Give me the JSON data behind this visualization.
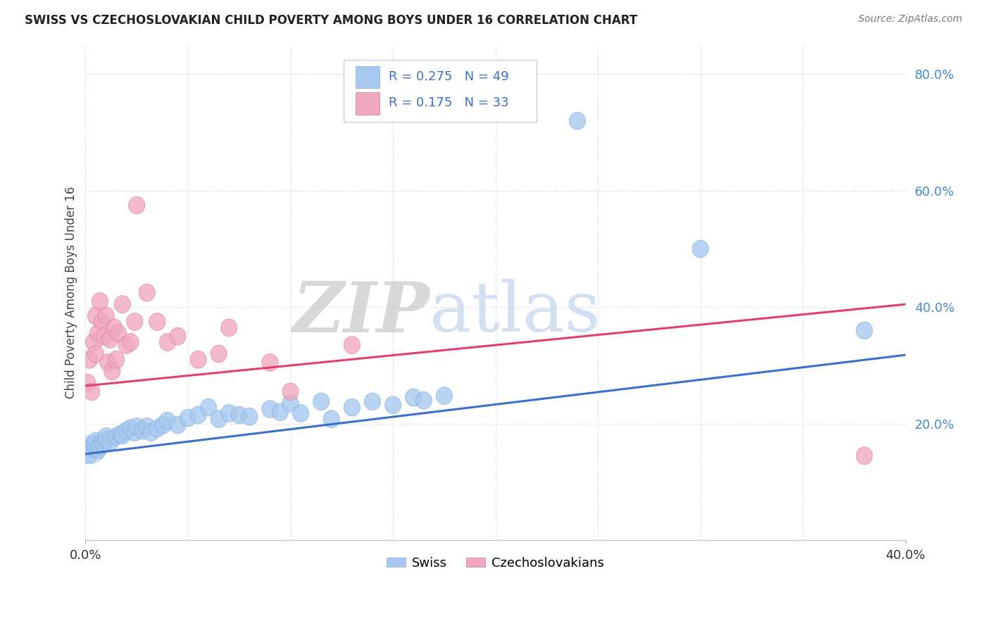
{
  "title": "SWISS VS CZECHOSLOVAKIAN CHILD POVERTY AMONG BOYS UNDER 16 CORRELATION CHART",
  "source": "Source: ZipAtlas.com",
  "ylabel": "Child Poverty Among Boys Under 16",
  "swiss_color": "#a8c8f0",
  "swiss_edge_color": "#7aaad8",
  "czech_color": "#f0a8c0",
  "czech_edge_color": "#d87898",
  "swiss_line_color": "#3a6fcc",
  "czech_line_color": "#e0406a",
  "background_color": "#ffffff",
  "grid_color": "#cccccc",
  "swiss_R": 0.275,
  "swiss_N": 49,
  "czech_R": 0.175,
  "czech_N": 33,
  "swiss_points": [
    [
      0.001,
      0.155
    ],
    [
      0.002,
      0.148
    ],
    [
      0.003,
      0.16
    ],
    [
      0.004,
      0.165
    ],
    [
      0.005,
      0.158
    ],
    [
      0.005,
      0.17
    ],
    [
      0.006,
      0.155
    ],
    [
      0.007,
      0.162
    ],
    [
      0.008,
      0.168
    ],
    [
      0.009,
      0.165
    ],
    [
      0.01,
      0.172
    ],
    [
      0.01,
      0.178
    ],
    [
      0.012,
      0.168
    ],
    [
      0.015,
      0.178
    ],
    [
      0.017,
      0.182
    ],
    [
      0.018,
      0.18
    ],
    [
      0.02,
      0.188
    ],
    [
      0.022,
      0.192
    ],
    [
      0.024,
      0.185
    ],
    [
      0.025,
      0.195
    ],
    [
      0.028,
      0.188
    ],
    [
      0.03,
      0.195
    ],
    [
      0.032,
      0.185
    ],
    [
      0.035,
      0.192
    ],
    [
      0.038,
      0.198
    ],
    [
      0.04,
      0.205
    ],
    [
      0.045,
      0.198
    ],
    [
      0.05,
      0.21
    ],
    [
      0.055,
      0.215
    ],
    [
      0.06,
      0.228
    ],
    [
      0.065,
      0.208
    ],
    [
      0.07,
      0.218
    ],
    [
      0.075,
      0.215
    ],
    [
      0.08,
      0.212
    ],
    [
      0.09,
      0.225
    ],
    [
      0.095,
      0.22
    ],
    [
      0.1,
      0.235
    ],
    [
      0.105,
      0.218
    ],
    [
      0.115,
      0.238
    ],
    [
      0.12,
      0.208
    ],
    [
      0.13,
      0.228
    ],
    [
      0.14,
      0.238
    ],
    [
      0.15,
      0.232
    ],
    [
      0.16,
      0.245
    ],
    [
      0.165,
      0.24
    ],
    [
      0.175,
      0.248
    ],
    [
      0.24,
      0.72
    ],
    [
      0.3,
      0.5
    ],
    [
      0.38,
      0.36
    ]
  ],
  "czech_points": [
    [
      0.001,
      0.27
    ],
    [
      0.002,
      0.31
    ],
    [
      0.003,
      0.255
    ],
    [
      0.004,
      0.34
    ],
    [
      0.005,
      0.385
    ],
    [
      0.005,
      0.32
    ],
    [
      0.006,
      0.355
    ],
    [
      0.007,
      0.41
    ],
    [
      0.008,
      0.375
    ],
    [
      0.009,
      0.35
    ],
    [
      0.01,
      0.385
    ],
    [
      0.011,
      0.305
    ],
    [
      0.012,
      0.345
    ],
    [
      0.013,
      0.29
    ],
    [
      0.014,
      0.365
    ],
    [
      0.015,
      0.31
    ],
    [
      0.016,
      0.355
    ],
    [
      0.018,
      0.405
    ],
    [
      0.02,
      0.335
    ],
    [
      0.022,
      0.34
    ],
    [
      0.024,
      0.375
    ],
    [
      0.025,
      0.575
    ],
    [
      0.03,
      0.425
    ],
    [
      0.035,
      0.375
    ],
    [
      0.04,
      0.34
    ],
    [
      0.045,
      0.35
    ],
    [
      0.055,
      0.31
    ],
    [
      0.065,
      0.32
    ],
    [
      0.07,
      0.365
    ],
    [
      0.09,
      0.305
    ],
    [
      0.1,
      0.255
    ],
    [
      0.13,
      0.335
    ],
    [
      0.38,
      0.145
    ]
  ],
  "xlim": [
    0.0,
    0.4
  ],
  "ylim": [
    0.0,
    0.85
  ],
  "yticks": [
    0.2,
    0.4,
    0.6,
    0.8
  ],
  "ytick_labels": [
    "20.0%",
    "40.0%",
    "60.0%",
    "80.0%"
  ],
  "xtick_labels": [
    "0.0%",
    "40.0%"
  ],
  "swiss_trend": [
    0.0,
    0.4,
    0.148,
    0.318
  ],
  "czech_trend": [
    0.0,
    0.4,
    0.265,
    0.405
  ]
}
